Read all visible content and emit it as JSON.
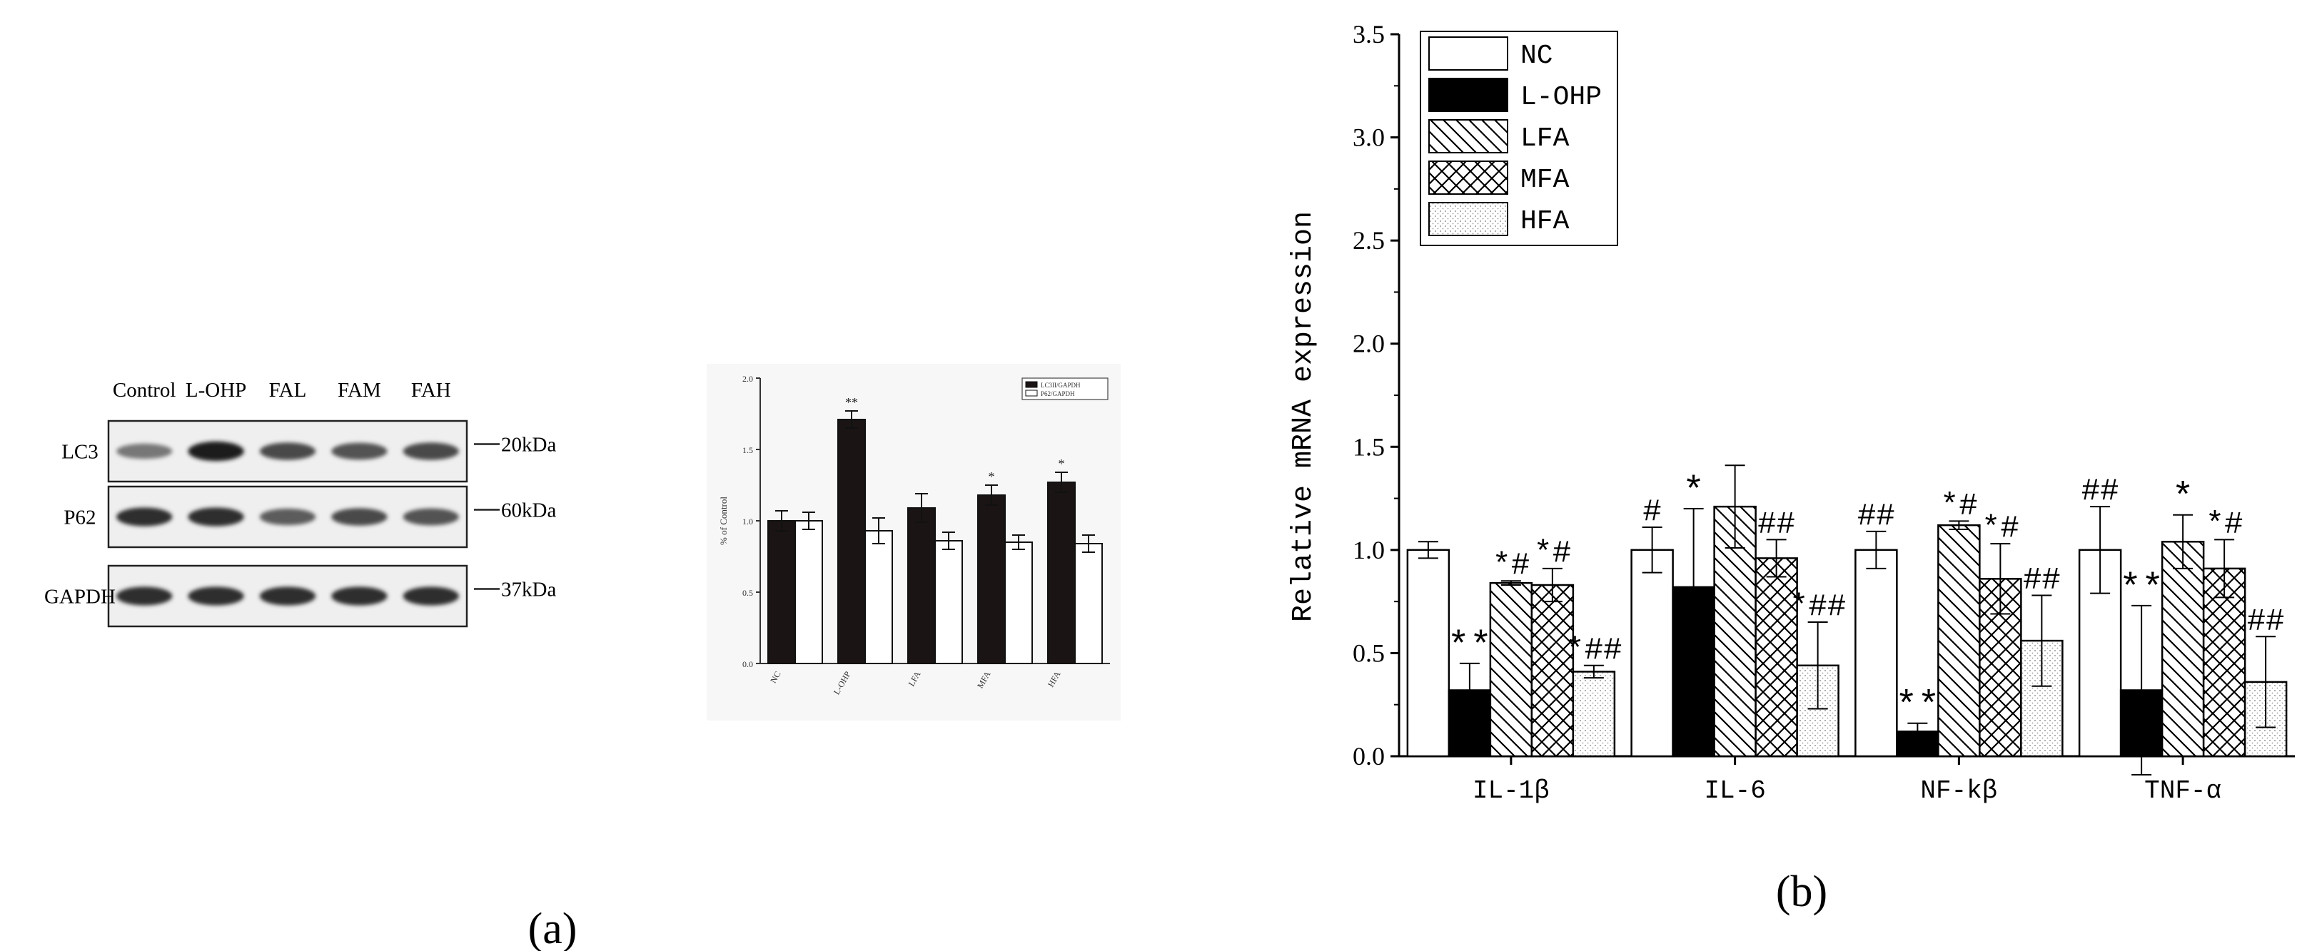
{
  "panel_a": {
    "caption": "(a)",
    "blot": {
      "lanes": [
        "Control",
        "L-OHP",
        "FAL",
        "FAM",
        "FAH"
      ],
      "rows": [
        {
          "label": "LC3",
          "marker": "20kDa",
          "intensity": [
            0.45,
            0.95,
            0.7,
            0.65,
            0.7
          ]
        },
        {
          "label": "P62",
          "marker": "60kDa",
          "intensity": [
            0.85,
            0.85,
            0.6,
            0.7,
            0.65
          ]
        },
        {
          "label": "GAPDH",
          "marker": "37kDa",
          "intensity": [
            0.85,
            0.85,
            0.85,
            0.85,
            0.85
          ]
        }
      ]
    }
  },
  "panel_b": {
    "caption": "(b)"
  },
  "chart_data": [
    {
      "type": "bar",
      "categories": [
        "NC",
        "L-OHP",
        "LFA",
        "MFA",
        "HFA"
      ],
      "ylabel": "% of Control",
      "ylim": [
        0,
        2.0
      ],
      "yticks": [
        "0.0",
        "0.5",
        "1.0",
        "1.5",
        "2.0"
      ],
      "legend_position": "top-right",
      "series": [
        {
          "name": "LC3II/GAPDH",
          "color": "#1a1414",
          "values": [
            1.0,
            1.71,
            1.09,
            1.18,
            1.27
          ],
          "errors": [
            0.07,
            0.06,
            0.1,
            0.07,
            0.07
          ]
        },
        {
          "name": "P62/GAPDH",
          "color": "#ffffff",
          "values": [
            1.0,
            0.93,
            0.86,
            0.85,
            0.84
          ],
          "errors": [
            0.06,
            0.09,
            0.06,
            0.05,
            0.06
          ]
        }
      ],
      "annotations": [
        {
          "category": 1,
          "series": 0,
          "text": "**"
        },
        {
          "category": 3,
          "series": 0,
          "text": "*"
        },
        {
          "category": 4,
          "series": 0,
          "text": "*"
        }
      ]
    },
    {
      "type": "bar",
      "categories": [
        "IL-1β",
        "IL-6",
        "NF-kβ",
        "TNF-α"
      ],
      "ylabel": "Relative mRNA expression",
      "ylim": [
        0,
        3.5
      ],
      "yticks": [
        "0.0",
        "0.5",
        "1.0",
        "1.5",
        "2.0",
        "2.5",
        "3.0",
        "3.5"
      ],
      "legend_position": "top-left",
      "series": [
        {
          "name": "NC",
          "pattern": "white",
          "values": [
            1.0,
            1.0,
            1.0,
            1.0
          ],
          "errors": [
            0.04,
            0.11,
            0.09,
            0.21
          ]
        },
        {
          "name": "L-OHP",
          "pattern": "black",
          "values": [
            0.32,
            0.82,
            0.12,
            0.32
          ],
          "errors": [
            0.13,
            0.38,
            0.04,
            0.41
          ]
        },
        {
          "name": "LFA",
          "pattern": "hatch",
          "values": [
            0.84,
            1.21,
            1.12,
            1.04
          ],
          "errors": [
            0.01,
            0.2,
            0.02,
            0.13
          ]
        },
        {
          "name": "MFA",
          "pattern": "cross",
          "values": [
            0.83,
            0.96,
            0.86,
            0.91
          ],
          "errors": [
            0.08,
            0.09,
            0.17,
            0.14
          ]
        },
        {
          "name": "HFA",
          "pattern": "dots",
          "values": [
            0.41,
            0.44,
            0.56,
            0.36
          ],
          "errors": [
            0.03,
            0.21,
            0.22,
            0.22
          ]
        }
      ],
      "annotations": [
        {
          "category": 0,
          "series": 1,
          "text": "**"
        },
        {
          "category": 0,
          "series": 2,
          "text": "*#"
        },
        {
          "category": 0,
          "series": 3,
          "text": "*#"
        },
        {
          "category": 0,
          "series": 4,
          "text": "*##"
        },
        {
          "category": 1,
          "series": 0,
          "text": "#"
        },
        {
          "category": 1,
          "series": 1,
          "text": "*"
        },
        {
          "category": 1,
          "series": 3,
          "text": "##"
        },
        {
          "category": 1,
          "series": 4,
          "text": "*##"
        },
        {
          "category": 2,
          "series": 0,
          "text": "##"
        },
        {
          "category": 2,
          "series": 1,
          "text": "**"
        },
        {
          "category": 2,
          "series": 2,
          "text": "*#"
        },
        {
          "category": 2,
          "series": 3,
          "text": "*#"
        },
        {
          "category": 2,
          "series": 4,
          "text": "##"
        },
        {
          "category": 3,
          "series": 0,
          "text": "##"
        },
        {
          "category": 3,
          "series": 1,
          "text": "**"
        },
        {
          "category": 3,
          "series": 2,
          "text": "*"
        },
        {
          "category": 3,
          "series": 3,
          "text": "*#"
        },
        {
          "category": 3,
          "series": 4,
          "text": "##"
        }
      ]
    }
  ]
}
